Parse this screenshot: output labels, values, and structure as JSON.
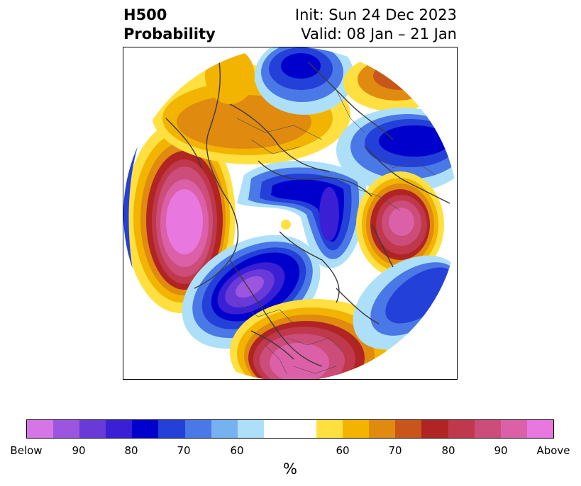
{
  "header": {
    "title_line1": "H500",
    "title_line2": "Probability",
    "init_text": "Init: Sun 24 Dec 2023",
    "valid_text": "Valid: 08 Jan – 21 Jan"
  },
  "colorbar": {
    "unit": "%",
    "colors": [
      "#d676e6",
      "#9c55e0",
      "#6a3ad8",
      "#3a1fd4",
      "#0000cc",
      "#2340d8",
      "#4a78e6",
      "#76b2f0",
      "#ade0f8",
      "#ffffff",
      "#ffffff",
      "#ffe040",
      "#f2b400",
      "#e08a10",
      "#c8561a",
      "#b02424",
      "#c0384c",
      "#cc4c7a",
      "#dc60a8",
      "#e878e0"
    ],
    "tick_labels": [
      "Below",
      "90",
      "80",
      "70",
      "60",
      "60",
      "70",
      "80",
      "90",
      "Above"
    ]
  },
  "legend_colors": {
    "below_strong": "#d676e6",
    "below": "#0000cc",
    "neutral": "#ffffff",
    "above": "#f2b400",
    "above_strong": "#e878e0"
  }
}
